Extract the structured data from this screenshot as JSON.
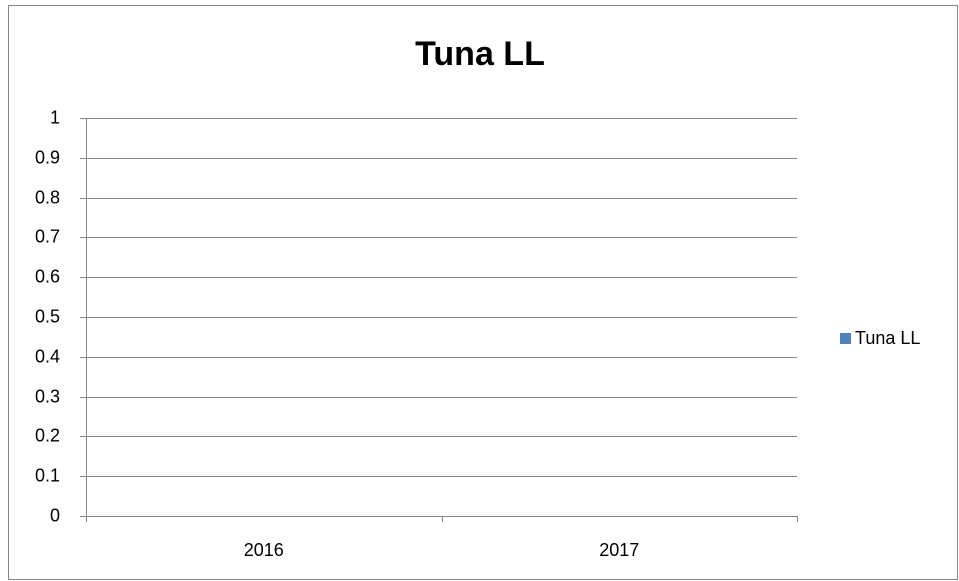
{
  "chart_data": {
    "type": "bar",
    "title": "Tuna LL",
    "categories": [
      "2016",
      "2017"
    ],
    "series": [
      {
        "name": "Tuna LL",
        "color": "#4f81bd",
        "values": [
          0,
          0
        ]
      }
    ],
    "ylim": [
      0,
      1
    ],
    "yticks": [
      0,
      0.1,
      0.2,
      0.3,
      0.4,
      0.5,
      0.6,
      0.7,
      0.8,
      0.9,
      1
    ],
    "grid": true,
    "legend": "right"
  }
}
